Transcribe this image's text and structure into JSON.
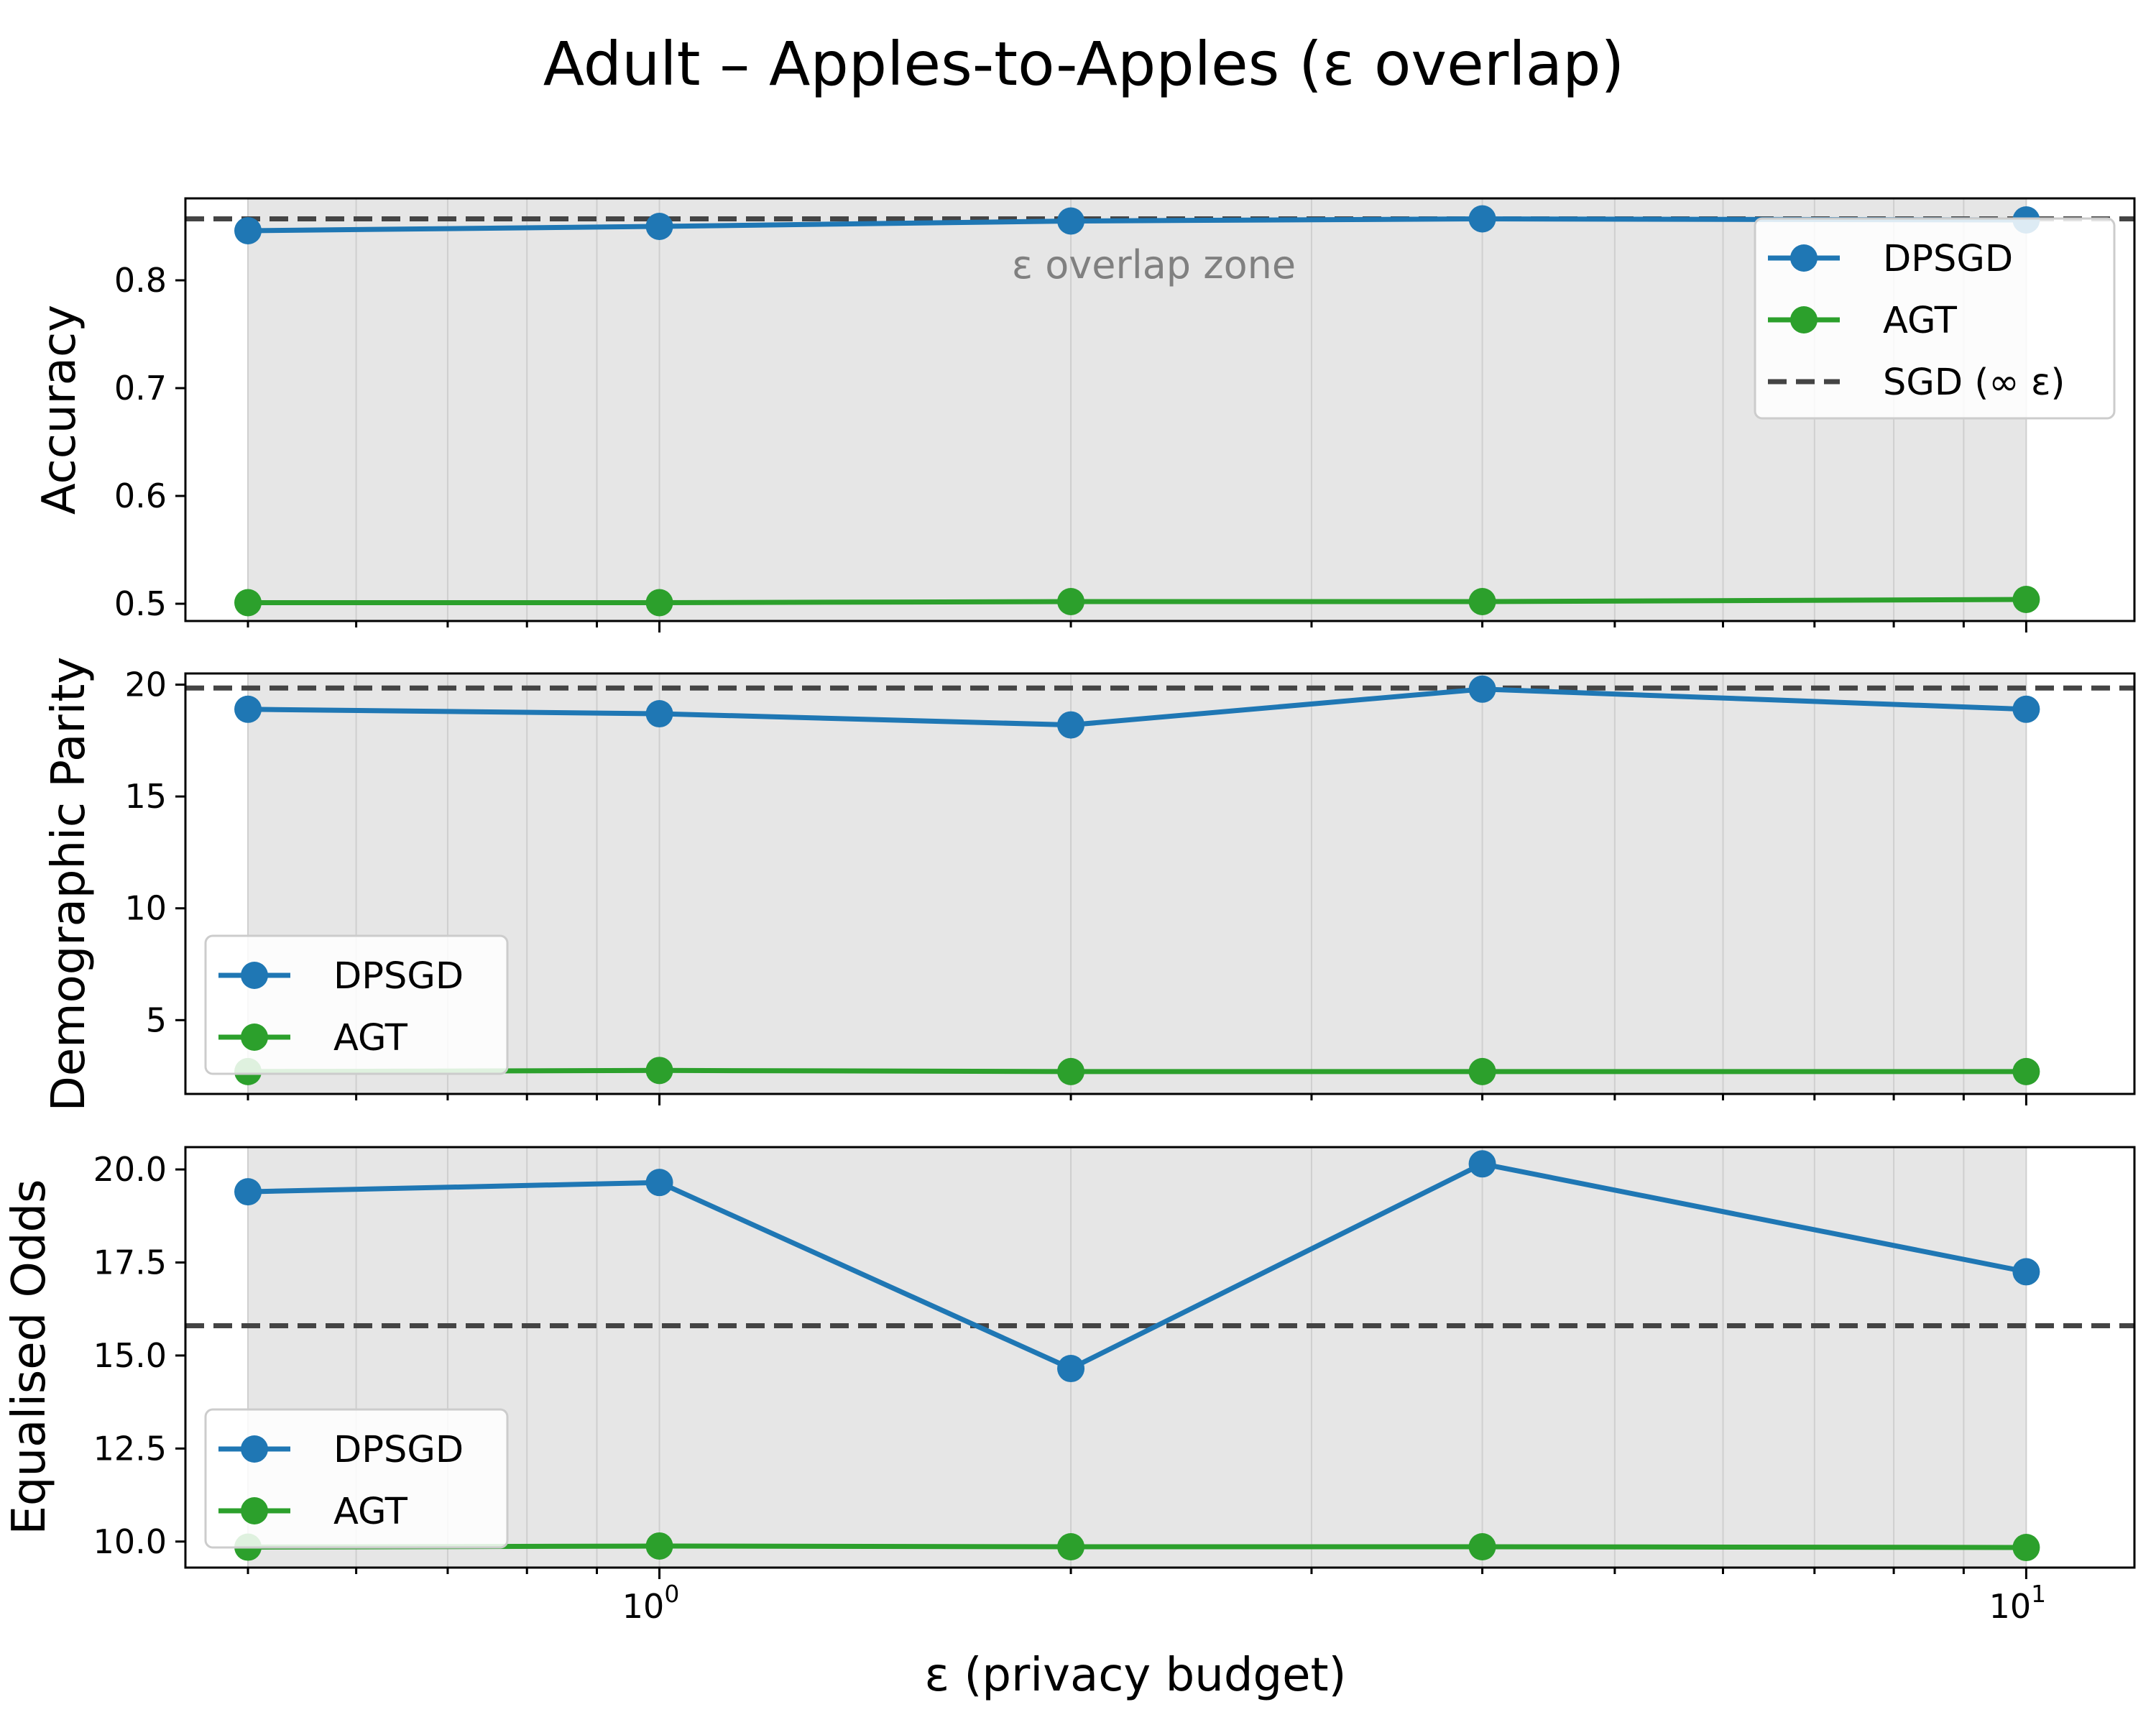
{
  "figure": {
    "title": "Adult – Apples-to-Apples (ε overlap)",
    "xlabel": "ε (privacy budget)"
  },
  "chart_data": [
    {
      "type": "line",
      "ylabel": "Accuracy",
      "x_scale": "log",
      "xlim": [
        0.45,
        12
      ],
      "x_ticks": [
        {
          "value": 1,
          "base": "10",
          "exp": "0"
        },
        {
          "value": 10,
          "base": "10",
          "exp": "1"
        }
      ],
      "ylim": [
        0.484,
        0.876
      ],
      "y_ticks": [
        {
          "value": 0.5,
          "label": "0.5"
        },
        {
          "value": 0.6,
          "label": "0.6"
        },
        {
          "value": 0.7,
          "label": "0.7"
        },
        {
          "value": 0.8,
          "label": "0.8"
        }
      ],
      "grid": "x-major-and-minor",
      "shaded_x_range": [
        0.5,
        10
      ],
      "annotation": {
        "text": "ε overlap zone",
        "x": 2.3,
        "y": 0.814
      },
      "x": [
        0.5,
        1,
        2,
        4,
        10
      ],
      "series": [
        {
          "name": "DPSGD",
          "color": "#1f77b4",
          "values": [
            0.846,
            0.85,
            0.855,
            0.857,
            0.856
          ]
        },
        {
          "name": "AGT",
          "color": "#2ca02c",
          "values": [
            0.501,
            0.501,
            0.502,
            0.502,
            0.504
          ]
        }
      ],
      "baseline": {
        "name": "SGD (∞ ε)",
        "value": 0.857,
        "color": "#444444"
      },
      "legend": {
        "position": "upper-right",
        "entries": [
          "DPSGD",
          "AGT",
          "SGD (∞ ε)"
        ]
      }
    },
    {
      "type": "line",
      "ylabel": "Demographic Parity",
      "x_scale": "log",
      "xlim": [
        0.45,
        12
      ],
      "x_ticks": [
        {
          "value": 1,
          "base": "10",
          "exp": "0"
        },
        {
          "value": 10,
          "base": "10",
          "exp": "1"
        }
      ],
      "ylim": [
        1.7,
        20.5
      ],
      "y_ticks": [
        {
          "value": 5,
          "label": "5"
        },
        {
          "value": 10,
          "label": "10"
        },
        {
          "value": 15,
          "label": "15"
        },
        {
          "value": 20,
          "label": "20"
        }
      ],
      "grid": "x-major-and-minor",
      "shaded_x_range": [
        0.5,
        10
      ],
      "x": [
        0.5,
        1,
        2,
        4,
        10
      ],
      "series": [
        {
          "name": "DPSGD",
          "color": "#1f77b4",
          "values": [
            18.9,
            18.7,
            18.2,
            19.8,
            18.9
          ]
        },
        {
          "name": "AGT",
          "color": "#2ca02c",
          "values": [
            2.7,
            2.75,
            2.7,
            2.7,
            2.7
          ]
        }
      ],
      "baseline": {
        "name": "SGD (∞ ε)",
        "value": 19.85,
        "color": "#444444"
      },
      "legend": {
        "position": "lower-left",
        "entries": [
          "DPSGD",
          "AGT"
        ]
      }
    },
    {
      "type": "line",
      "ylabel": "Equalised Odds",
      "x_scale": "log",
      "xlim": [
        0.45,
        12
      ],
      "x_ticks": [
        {
          "value": 1,
          "base": "10",
          "exp": "0"
        },
        {
          "value": 10,
          "base": "10",
          "exp": "1"
        }
      ],
      "ylim": [
        9.3,
        20.6
      ],
      "y_ticks": [
        {
          "value": 10,
          "label": "10.0"
        },
        {
          "value": 12.5,
          "label": "12.5"
        },
        {
          "value": 15,
          "label": "15.0"
        },
        {
          "value": 17.5,
          "label": "17.5"
        },
        {
          "value": 20,
          "label": "20.0"
        }
      ],
      "grid": "x-major-and-minor",
      "shaded_x_range": [
        0.5,
        10
      ],
      "x": [
        0.5,
        1,
        2,
        4,
        10
      ],
      "series": [
        {
          "name": "DPSGD",
          "color": "#1f77b4",
          "values": [
            19.4,
            19.65,
            14.65,
            20.15,
            17.25
          ]
        },
        {
          "name": "AGT",
          "color": "#2ca02c",
          "values": [
            9.85,
            9.88,
            9.86,
            9.86,
            9.84
          ]
        }
      ],
      "baseline": {
        "name": "SGD (∞ ε)",
        "value": 15.8,
        "color": "#444444"
      },
      "legend": {
        "position": "lower-left",
        "entries": [
          "DPSGD",
          "AGT"
        ]
      }
    }
  ]
}
